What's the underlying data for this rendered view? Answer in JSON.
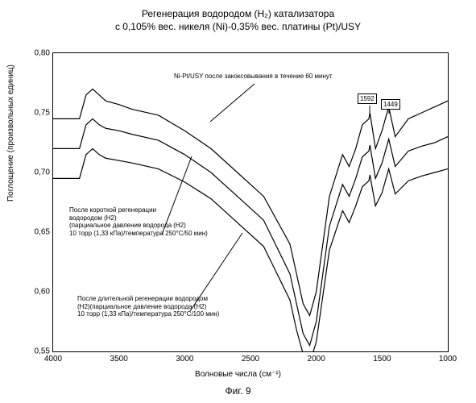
{
  "chart": {
    "type": "line",
    "title_line1": "Регенерация водородом (H₂) катализатора",
    "title_line2": "с 0,105% вес. никеля (Ni)-0,35% вес. платины (Pt)/USY",
    "title_fontsize": 12,
    "x_label": "Волновые числа (см⁻¹)",
    "y_label": "Поглощение (произвольных единиц)",
    "fig_label": "Фиг. 9",
    "xlim_min": 4000,
    "xlim_max": 1000,
    "ylim_min": 0.55,
    "ylim_max": 0.8,
    "x_ticks": [
      4000,
      3500,
      3000,
      2500,
      2000,
      1500,
      1000
    ],
    "y_ticks": [
      0.55,
      0.6,
      0.65,
      0.7,
      0.75,
      0.8
    ],
    "y_tick_labels": [
      "0,55",
      "0,60",
      "0,65",
      "0,70",
      "0,75",
      "0,80"
    ],
    "background_color": "#ffffff",
    "line_color": "#000000",
    "border_color": "#000000",
    "annotations": {
      "top": "Ni-Pt/USY после закоксовывания в течение 60 минут",
      "middle_l1": "После короткой регенерации",
      "middle_l2": "водородом (H2)",
      "middle_l3": "(парциальное давление водорода (H2)",
      "middle_l4": "10 торр (1,33 кПа)/температура 250°C/50 мин)",
      "bottom_l1": "После длительной регенерации водородом",
      "bottom_l2": "(H2)(парциальное давление водорода (H2)",
      "bottom_l3": "10 торр (1,33 кПа)/температура 250°C/100 мин)"
    },
    "peak_labels": {
      "p1": "1592",
      "p2": "1449"
    },
    "series": {
      "top": {
        "x": [
          4000,
          3800,
          3750,
          3700,
          3650,
          3600,
          3500,
          3400,
          3200,
          3000,
          2800,
          2600,
          2400,
          2200,
          2150,
          2100,
          2050,
          2000,
          1900,
          1800,
          1750,
          1700,
          1650,
          1600,
          1592,
          1550,
          1500,
          1449,
          1400,
          1300,
          1200,
          1100,
          1000
        ],
        "y": [
          0.745,
          0.745,
          0.765,
          0.77,
          0.765,
          0.76,
          0.757,
          0.753,
          0.748,
          0.735,
          0.72,
          0.7,
          0.68,
          0.64,
          0.615,
          0.59,
          0.58,
          0.6,
          0.68,
          0.715,
          0.705,
          0.72,
          0.74,
          0.745,
          0.75,
          0.72,
          0.735,
          0.755,
          0.73,
          0.745,
          0.75,
          0.755,
          0.76
        ]
      },
      "middle": {
        "x": [
          4000,
          3800,
          3750,
          3700,
          3650,
          3600,
          3500,
          3400,
          3200,
          3000,
          2800,
          2600,
          2400,
          2200,
          2150,
          2100,
          2050,
          2000,
          1900,
          1800,
          1750,
          1700,
          1650,
          1600,
          1592,
          1550,
          1500,
          1449,
          1400,
          1300,
          1200,
          1100,
          1000
        ],
        "y": [
          0.72,
          0.72,
          0.74,
          0.745,
          0.74,
          0.737,
          0.735,
          0.732,
          0.727,
          0.715,
          0.7,
          0.68,
          0.66,
          0.615,
          0.59,
          0.565,
          0.555,
          0.575,
          0.655,
          0.69,
          0.68,
          0.695,
          0.713,
          0.718,
          0.723,
          0.695,
          0.708,
          0.728,
          0.705,
          0.718,
          0.722,
          0.725,
          0.73
        ]
      },
      "bottom": {
        "x": [
          4000,
          3800,
          3750,
          3700,
          3650,
          3600,
          3500,
          3400,
          3200,
          3000,
          2800,
          2600,
          2400,
          2200,
          2150,
          2100,
          2050,
          2000,
          1900,
          1800,
          1750,
          1700,
          1650,
          1600,
          1592,
          1550,
          1500,
          1449,
          1400,
          1300,
          1200,
          1100,
          1000
        ],
        "y": [
          0.695,
          0.695,
          0.715,
          0.72,
          0.715,
          0.712,
          0.71,
          0.708,
          0.703,
          0.692,
          0.678,
          0.658,
          0.638,
          0.593,
          0.568,
          0.548,
          0.54,
          0.558,
          0.635,
          0.668,
          0.658,
          0.672,
          0.688,
          0.693,
          0.698,
          0.672,
          0.683,
          0.703,
          0.682,
          0.693,
          0.697,
          0.7,
          0.703
        ]
      }
    }
  }
}
